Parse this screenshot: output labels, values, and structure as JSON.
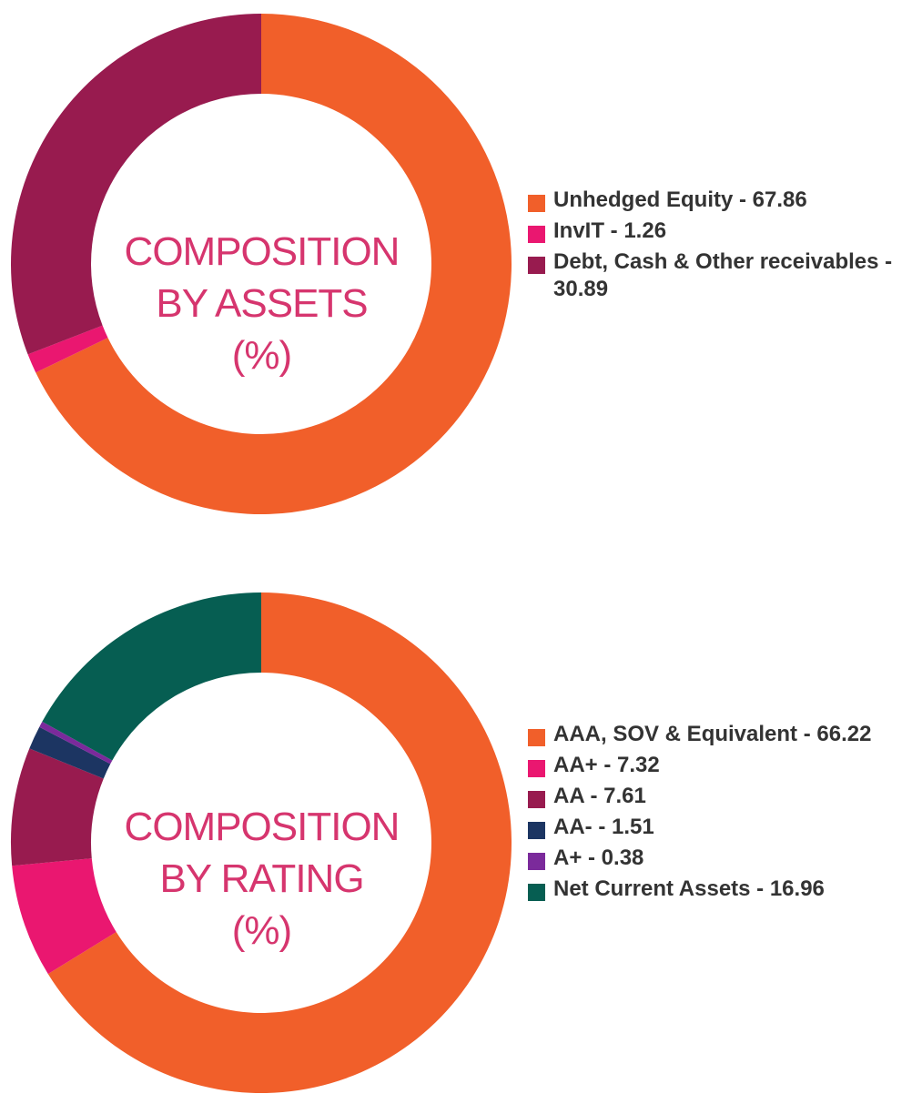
{
  "chart_data": [
    {
      "type": "pie",
      "donut": true,
      "title_lines": [
        "COMPOSITION",
        "BY ASSETS",
        "(%)"
      ],
      "slices": [
        {
          "label": "Unhedged Equity - 67.86",
          "value": 67.86,
          "color": "#f15f2a"
        },
        {
          "label": "InvIT - 1.26",
          "value": 1.26,
          "color": "#ea1770"
        },
        {
          "label": "Debt, Cash & Other receivables - 30.89",
          "value": 30.89,
          "color": "#981b4f"
        }
      ],
      "legend_position": "right"
    },
    {
      "type": "pie",
      "donut": true,
      "title_lines": [
        "COMPOSITION",
        "BY RATING",
        "(%)"
      ],
      "slices": [
        {
          "label": "AAA, SOV & Equivalent - 66.22",
          "value": 66.22,
          "color": "#f15f2a"
        },
        {
          "label": "AA+ - 7.32",
          "value": 7.32,
          "color": "#ea1770"
        },
        {
          "label": "AA - 7.61",
          "value": 7.61,
          "color": "#981b4f"
        },
        {
          "label": "AA- - 1.51",
          "value": 1.51,
          "color": "#1c3562"
        },
        {
          "label": "A+ - 0.38",
          "value": 0.38,
          "color": "#7b2a9b"
        },
        {
          "label": "Net Current Assets - 16.96",
          "value": 16.96,
          "color": "#065e52"
        }
      ],
      "legend_position": "right"
    }
  ]
}
